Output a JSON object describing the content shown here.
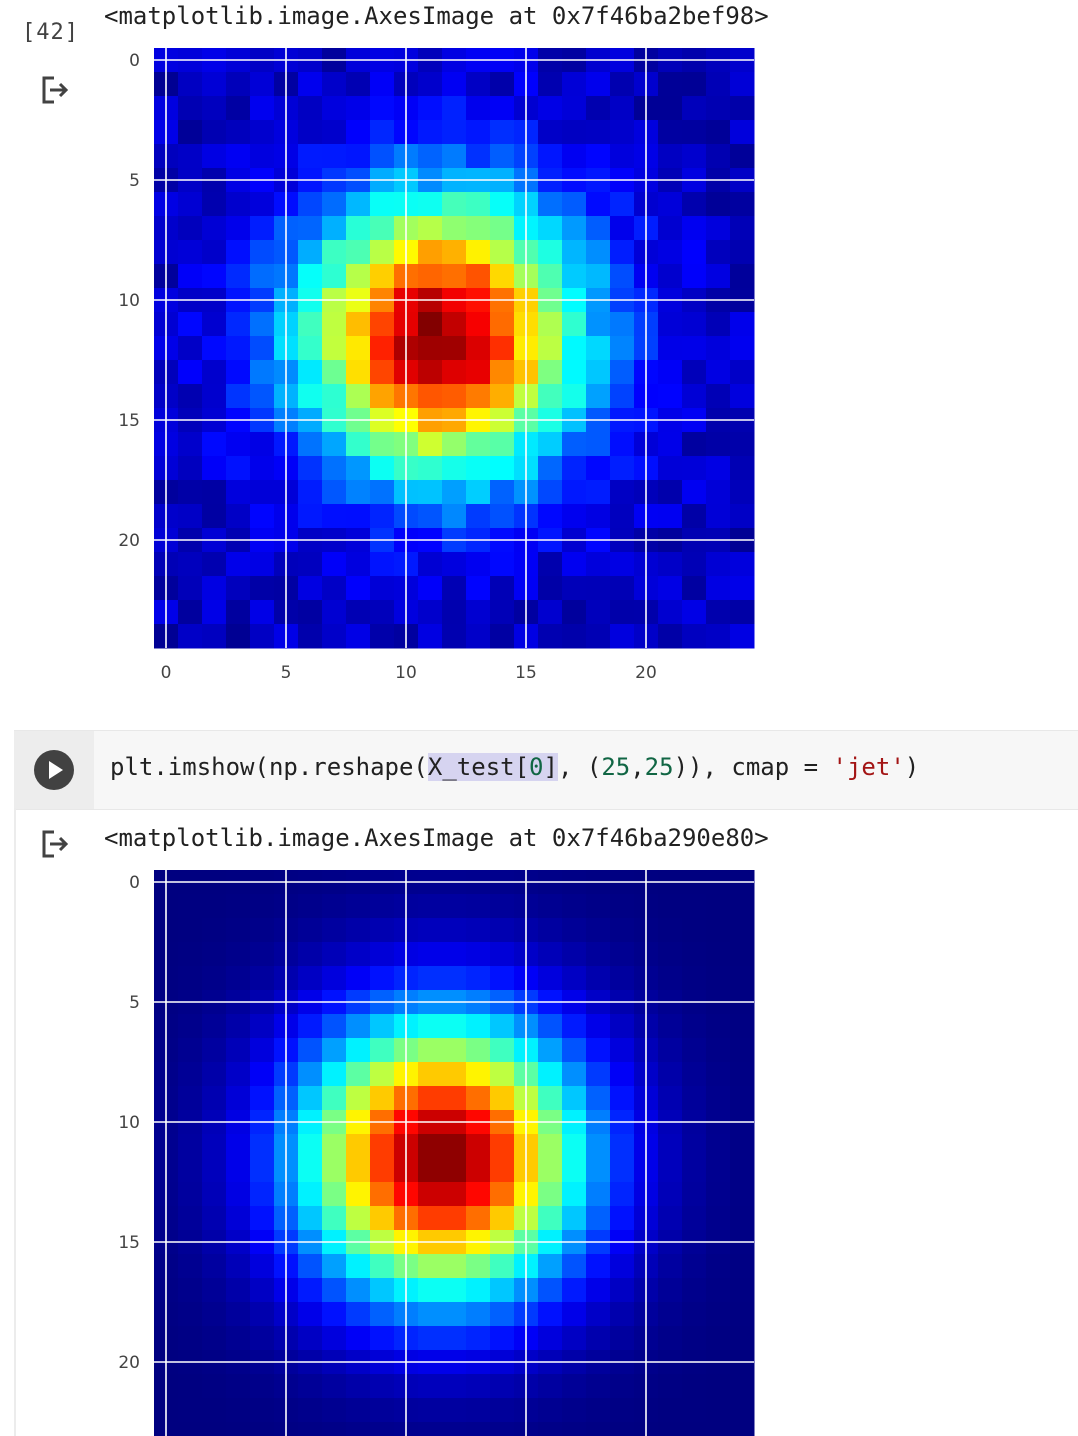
{
  "cell1": {
    "exec_count": "[42]",
    "output_text": "<matplotlib.image.AxesImage at 0x7f46ba2bef98>",
    "output_icon": "output-arrow-icon"
  },
  "cell2": {
    "run_icon": "play-icon",
    "code": {
      "t1": "plt.imshow(np.reshape(",
      "t2": "X_test[",
      "t3": "0",
      "t4": "]",
      "t5": ", (",
      "t6": "25",
      "t7": ",",
      "t8": "25",
      "t9": ")), cmap = ",
      "t10": "'jet'",
      "t11": ")"
    },
    "output_text": "<matplotlib.image.AxesImage at 0x7f46ba290e80>",
    "output_icon": "output-arrow-icon"
  },
  "colors": {
    "jet_low": "#00007f",
    "jet_high": "#7f0000",
    "gridline": "#ffffff",
    "string_token": "#a31515",
    "number_token": "#116644"
  },
  "chart_data": [
    {
      "type": "heatmap",
      "colormap": "jet",
      "rows": 25,
      "cols": 25,
      "noisy": true,
      "center": [
        11.5,
        11.5
      ],
      "peak_value": 1.0,
      "xticks": [
        0,
        5,
        10,
        15,
        20
      ],
      "yticks": [
        0,
        5,
        10,
        15,
        20
      ],
      "grid": true
    },
    {
      "type": "heatmap",
      "colormap": "jet",
      "rows": 25,
      "cols": 25,
      "noisy": false,
      "center": [
        11.5,
        11.5
      ],
      "peak_value": 1.0,
      "xticks": [],
      "yticks": [
        0,
        5,
        10,
        15,
        20
      ],
      "grid": true
    }
  ]
}
